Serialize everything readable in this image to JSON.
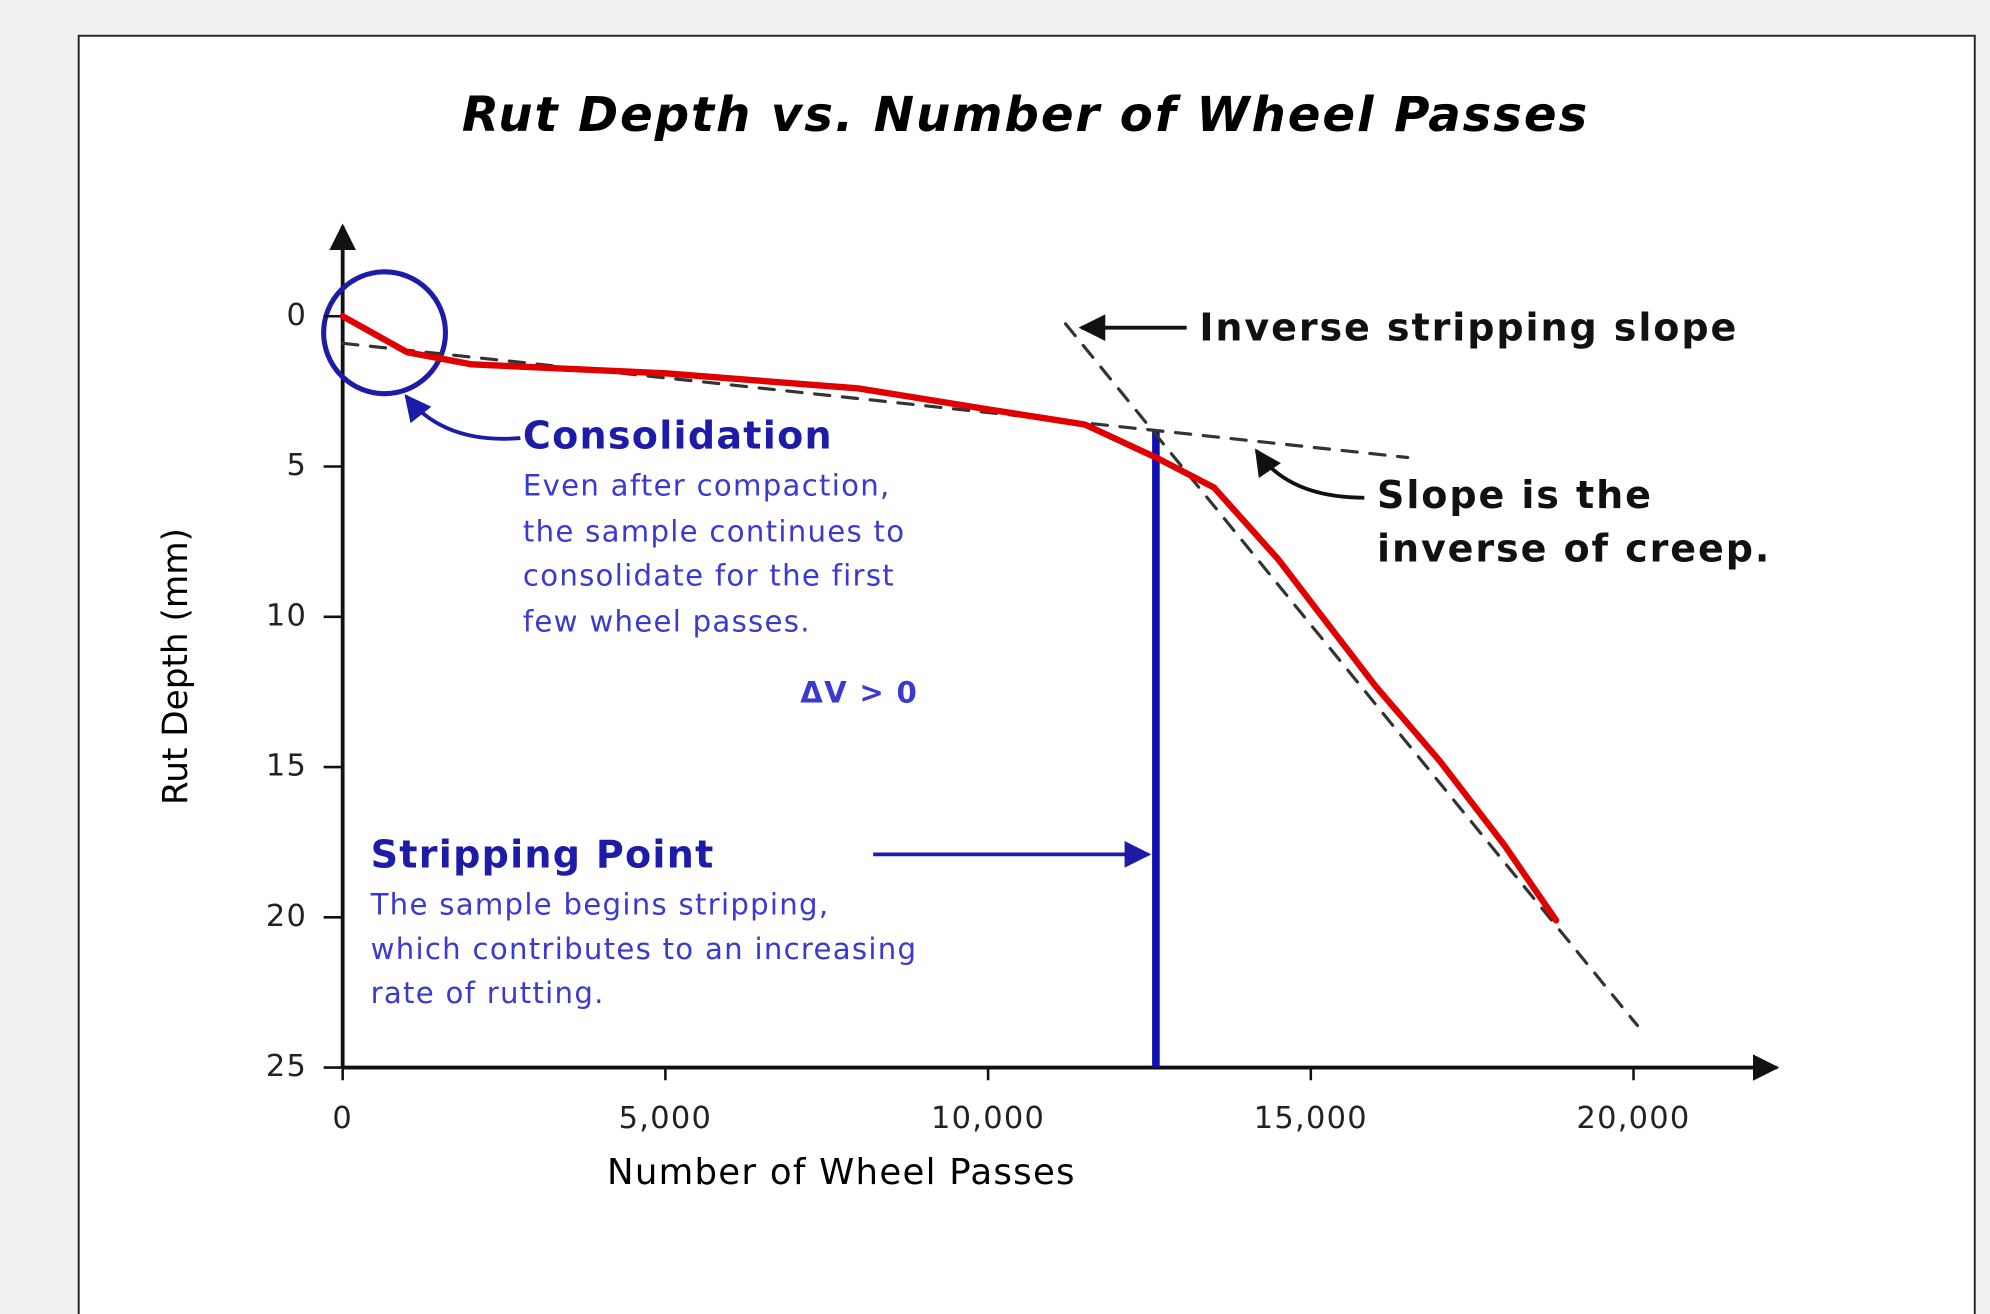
{
  "chart_data": {
    "type": "line",
    "title": "Rut Depth vs. Number of Wheel Passes",
    "x_label": "Number of Wheel Passes",
    "y_label": "Rut Depth (mm)",
    "xlim": [
      0,
      22200
    ],
    "ylim": [
      -3,
      25
    ],
    "y_inverted": true,
    "xticks": [
      0,
      {
        "value": 5000,
        "label": "5,000"
      },
      {
        "value": 10000,
        "label": "10,000"
      },
      {
        "value": 15000,
        "label": "15,000"
      },
      {
        "value": 20000,
        "label": "20,000"
      }
    ],
    "yticks": [
      0,
      5,
      10,
      15,
      20,
      25
    ],
    "series": [
      {
        "color": "#e00000",
        "x": [
          0,
          1000,
          2000,
          5000,
          8000,
          10000,
          11500,
          12600,
          13500,
          14500,
          15000,
          16000,
          17000,
          18000,
          18800
        ],
        "values": [
          0,
          1.2,
          1.6,
          1.9,
          2.4,
          3.1,
          3.6,
          4.7,
          5.7,
          8.1,
          9.5,
          12.3,
          14.8,
          17.6,
          20.1
        ]
      },
      {
        "color": "#333333",
        "dashed": true,
        "x": [
          0,
          16500
        ],
        "values": [
          0.9,
          4.7
        ]
      },
      {
        "color": "#333333",
        "dashed": true,
        "x": [
          11200,
          20060
        ],
        "values": [
          0.25,
          23.6
        ]
      }
    ],
    "stripping_point": {
      "x": 12600,
      "y_top": 3.8,
      "color": "#1010b0"
    },
    "annotations": {
      "consolidation": {
        "title": "Consolidation",
        "lines": [
          "Even after compaction,",
          "the sample continues to",
          "consolidate for the first",
          "few wheel passes."
        ],
        "note": "ΔV > 0"
      },
      "stripping": {
        "title": "Stripping Point",
        "lines": [
          "The sample begins stripping,",
          "which contributes to an increasing",
          "rate of rutting."
        ]
      },
      "inverse_slope": "Inverse stripping slope",
      "creep": {
        "lines": [
          "Slope is the",
          "inverse of creep."
        ]
      }
    }
  }
}
